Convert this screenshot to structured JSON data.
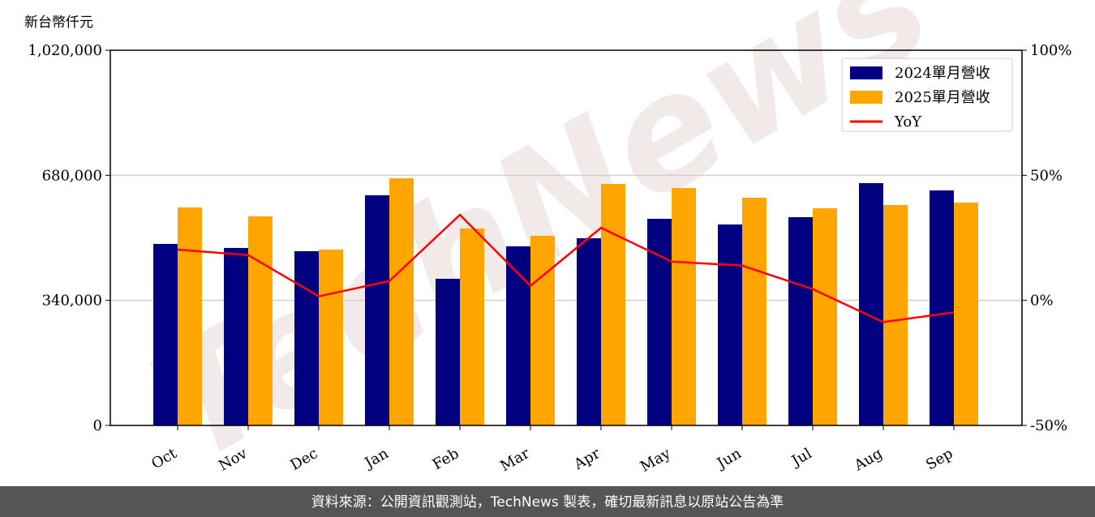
{
  "chart_data": {
    "type": "bar_line",
    "y_label": "新台幣仟元",
    "watermark": "TechNews",
    "source": "資料來源：公開資訊觀測站，TechNews 製表，確切最新訊息以原站公告為準",
    "categories": [
      "Oct",
      "Nov",
      "Dec",
      "Jan",
      "Feb",
      "Mar",
      "Apr",
      "May",
      "Jun",
      "Jul",
      "Aug",
      "Sep"
    ],
    "series": [
      {
        "name": "2024單月營收",
        "type": "bar",
        "color": "#000080",
        "values": [
          493500,
          482500,
          473700,
          625600,
          398700,
          486900,
          508900,
          561800,
          546300,
          566200,
          658700,
          638900
        ]
      },
      {
        "name": "2025單月營收",
        "type": "bar",
        "color": "#ffa500",
        "values": [
          592600,
          568400,
          478100,
          671900,
          535300,
          515500,
          656500,
          645500,
          619000,
          590400,
          599200,
          605800
        ]
      },
      {
        "name": "YoY",
        "type": "line",
        "axis": "y2",
        "color": "#ff0000",
        "values": [
          20.3,
          18.1,
          1.6,
          7.7,
          34.2,
          5.8,
          29.0,
          15.5,
          13.9,
          4.5,
          -8.7,
          -4.8
        ]
      }
    ],
    "ylim": [
      0,
      1020000
    ],
    "yticks": [
      0,
      {
        "value": 340000,
        "label": "340,000"
      },
      {
        "value": 680000,
        "label": "680,000"
      },
      {
        "value": 1020000,
        "label": "1,020,000"
      }
    ],
    "y2lim": [
      -50,
      100
    ],
    "y2ticks": [
      {
        "value": -50,
        "label": "-50%"
      },
      {
        "value": 0,
        "label": "0%"
      },
      {
        "value": 50,
        "label": "50%"
      },
      {
        "value": 100,
        "label": "100%"
      }
    ],
    "grid": true,
    "legend": "upper right"
  }
}
